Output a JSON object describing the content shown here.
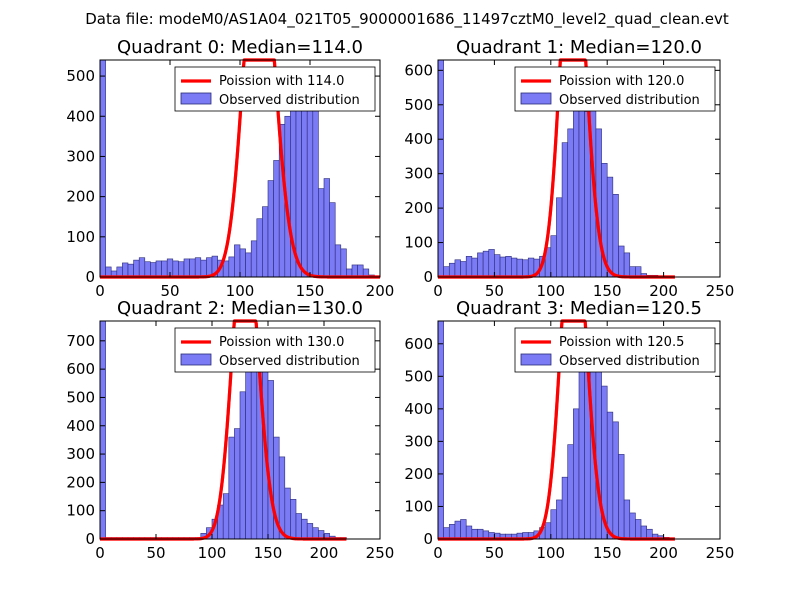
{
  "suptitle": "Data file: modeM0/AS1A04_021T05_9000001686_11497cztM0_level2_quad_clean.evt",
  "colors": {
    "bar_fill": "#7b7bf5",
    "bar_edge": "#2a2a78",
    "curve": "#ff0000",
    "curve_peak": "#ff8a8a"
  },
  "chart_data": [
    {
      "type": "bar",
      "title": "Quadrant 0: Median=114.0",
      "xlim": [
        0,
        200
      ],
      "ylim": [
        0,
        540
      ],
      "xticks": [
        0,
        50,
        100,
        150,
        200
      ],
      "yticks": [
        0,
        100,
        200,
        300,
        400,
        500
      ],
      "bin_width": 4,
      "bins_start": 0,
      "values": [
        540,
        25,
        15,
        25,
        35,
        32,
        42,
        48,
        38,
        36,
        40,
        40,
        45,
        40,
        38,
        45,
        45,
        48,
        42,
        48,
        52,
        42,
        40,
        50,
        80,
        70,
        60,
        90,
        145,
        175,
        240,
        290,
        380,
        400,
        440,
        510,
        470,
        475,
        420,
        220,
        245,
        185,
        80,
        70,
        20,
        30,
        30,
        20,
        5,
        0
      ],
      "poisson_mean": 114.0,
      "legend": [
        "Poission with 114.0",
        "Observed distribution"
      ]
    },
    {
      "type": "bar",
      "title": "Quadrant 1: Median=120.0",
      "xlim": [
        0,
        250
      ],
      "ylim": [
        0,
        630
      ],
      "xticks": [
        0,
        50,
        100,
        150,
        200,
        250
      ],
      "yticks": [
        0,
        100,
        200,
        300,
        400,
        500,
        600
      ],
      "bin_width": 5,
      "bins_start": 0,
      "values": [
        630,
        30,
        40,
        50,
        45,
        60,
        55,
        70,
        75,
        80,
        65,
        58,
        60,
        55,
        52,
        50,
        55,
        52,
        60,
        85,
        120,
        230,
        390,
        430,
        560,
        520,
        480,
        510,
        430,
        330,
        290,
        240,
        90,
        70,
        30,
        30,
        10,
        5,
        5,
        0,
        0,
        0
      ],
      "poisson_mean": 120.0,
      "legend": [
        "Poission with 120.0",
        "Observed distribution"
      ]
    },
    {
      "type": "bar",
      "title": "Quadrant 2: Median=130.0",
      "xlim": [
        0,
        250
      ],
      "ylim": [
        0,
        770
      ],
      "xticks": [
        0,
        50,
        100,
        150,
        200,
        250
      ],
      "yticks": [
        0,
        100,
        200,
        300,
        400,
        500,
        600,
        700
      ],
      "bin_width": 5,
      "bins_start": 0,
      "values": [
        770,
        5,
        5,
        5,
        5,
        5,
        5,
        5,
        5,
        5,
        5,
        5,
        5,
        5,
        5,
        5,
        5,
        5,
        20,
        40,
        70,
        120,
        160,
        360,
        390,
        520,
        600,
        740,
        670,
        690,
        560,
        360,
        290,
        180,
        140,
        90,
        70,
        55,
        40,
        30,
        20,
        10,
        5,
        5
      ],
      "poisson_mean": 130.0,
      "legend": [
        "Poission with 130.0",
        "Observed distribution"
      ]
    },
    {
      "type": "bar",
      "title": "Quadrant 3: Median=120.5",
      "xlim": [
        0,
        250
      ],
      "ylim": [
        0,
        670
      ],
      "xticks": [
        0,
        50,
        100,
        150,
        200,
        250
      ],
      "yticks": [
        0,
        100,
        200,
        300,
        400,
        500,
        600
      ],
      "bin_width": 5,
      "bins_start": 0,
      "values": [
        670,
        35,
        45,
        55,
        60,
        40,
        30,
        30,
        25,
        20,
        18,
        15,
        15,
        15,
        18,
        20,
        20,
        25,
        35,
        50,
        90,
        120,
        190,
        290,
        400,
        520,
        610,
        580,
        520,
        470,
        390,
        360,
        260,
        120,
        80,
        60,
        40,
        30,
        15,
        10,
        5,
        0
      ],
      "poisson_mean": 120.5,
      "legend": [
        "Poission with 120.5",
        "Observed distribution"
      ]
    }
  ]
}
